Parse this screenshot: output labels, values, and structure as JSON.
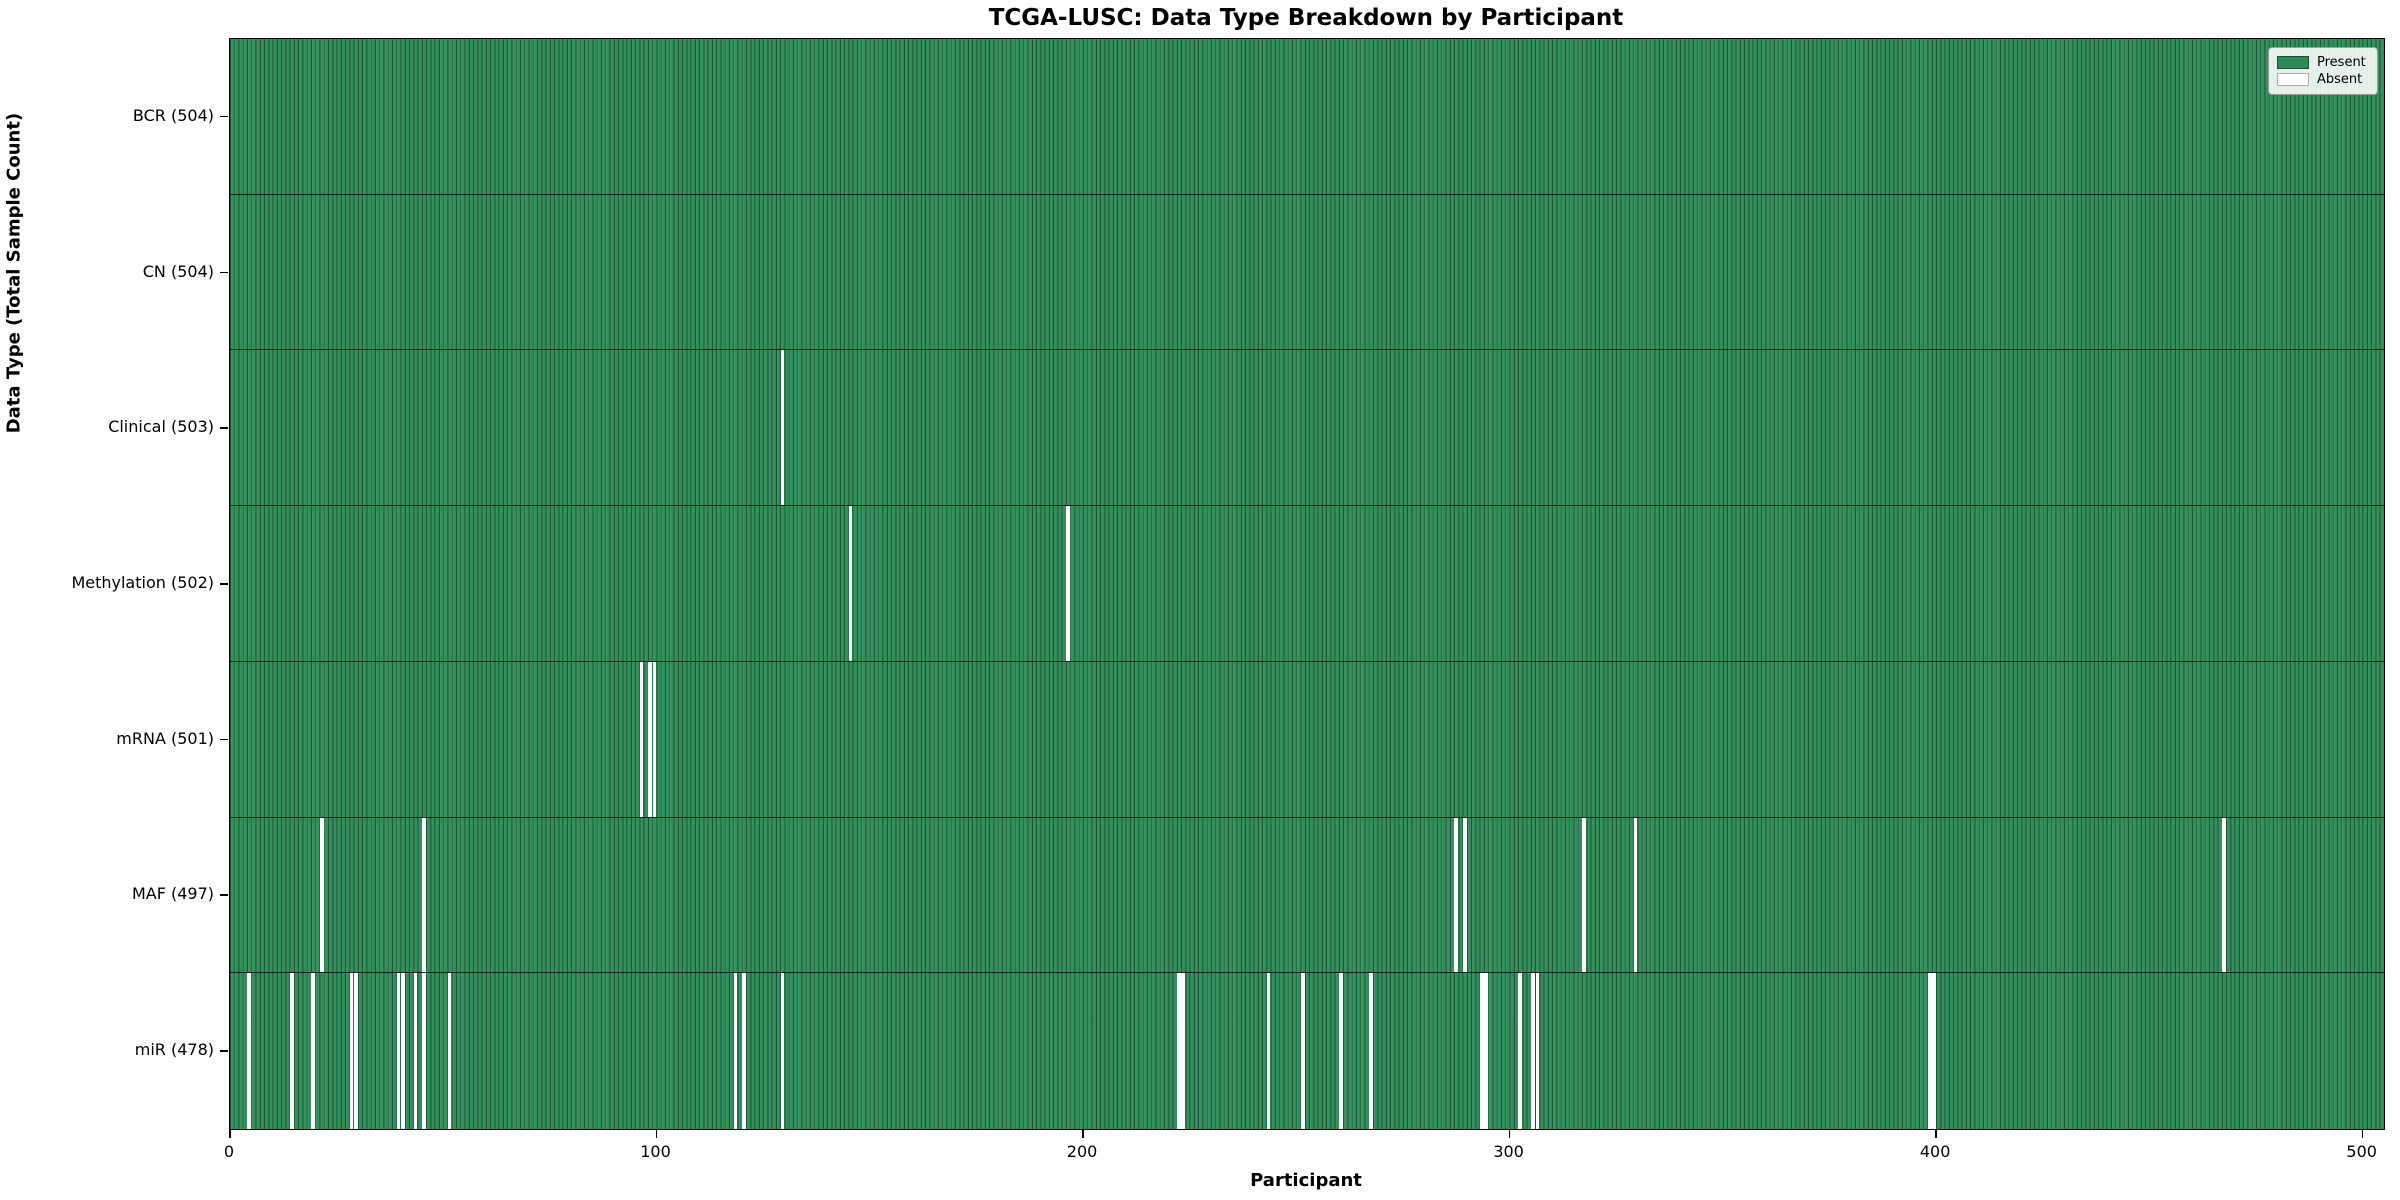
{
  "title": "TCGA-LUSC: Data Type Breakdown by Participant",
  "xlabel": "Participant",
  "ylabel": "Data Type (Total Sample Count)",
  "legend": {
    "present_label": "Present",
    "absent_label": "Absent"
  },
  "colors": {
    "present": "#2e8b57",
    "absent": "#ffffff",
    "bar_edge": "rgba(8,35,20,0.5)",
    "row_separator": "rgba(5,20,12,0.85)"
  },
  "chart_data": {
    "type": "heatmap",
    "title": "TCGA-LUSC: Data Type Breakdown by Participant",
    "xlabel": "Participant",
    "ylabel": "Data Type (Total Sample Count)",
    "legend_entries": [
      "Present",
      "Absent"
    ],
    "legend_position": "upper right",
    "n_participants": 504,
    "x_axis_max": 505,
    "x_ticks": [
      0,
      100,
      200,
      300,
      400,
      500
    ],
    "rows": [
      {
        "name": "BCR",
        "label": "BCR (504)",
        "present_count": 504,
        "absent_participants": []
      },
      {
        "name": "CN",
        "label": "CN (504)",
        "present_count": 504,
        "absent_participants": []
      },
      {
        "name": "Clinical",
        "label": "Clinical (503)",
        "present_count": 503,
        "absent_participants": [
          129
        ]
      },
      {
        "name": "Methylation",
        "label": "Methylation (502)",
        "present_count": 502,
        "absent_participants": [
          145,
          196
        ]
      },
      {
        "name": "mRNA",
        "label": "mRNA (501)",
        "present_count": 501,
        "absent_participants": [
          96,
          98,
          99
        ]
      },
      {
        "name": "MAF",
        "label": "MAF (497)",
        "present_count": 497,
        "absent_participants": [
          21,
          45,
          287,
          289,
          317,
          329,
          467
        ]
      },
      {
        "name": "miR",
        "label": "miR (478)",
        "present_count": 478,
        "absent_participants": [
          4,
          14,
          19,
          28,
          29,
          39,
          40,
          43,
          45,
          51,
          118,
          120,
          129,
          222,
          223,
          243,
          251,
          260,
          267,
          293,
          294,
          302,
          305,
          306,
          398,
          399
        ]
      }
    ]
  }
}
